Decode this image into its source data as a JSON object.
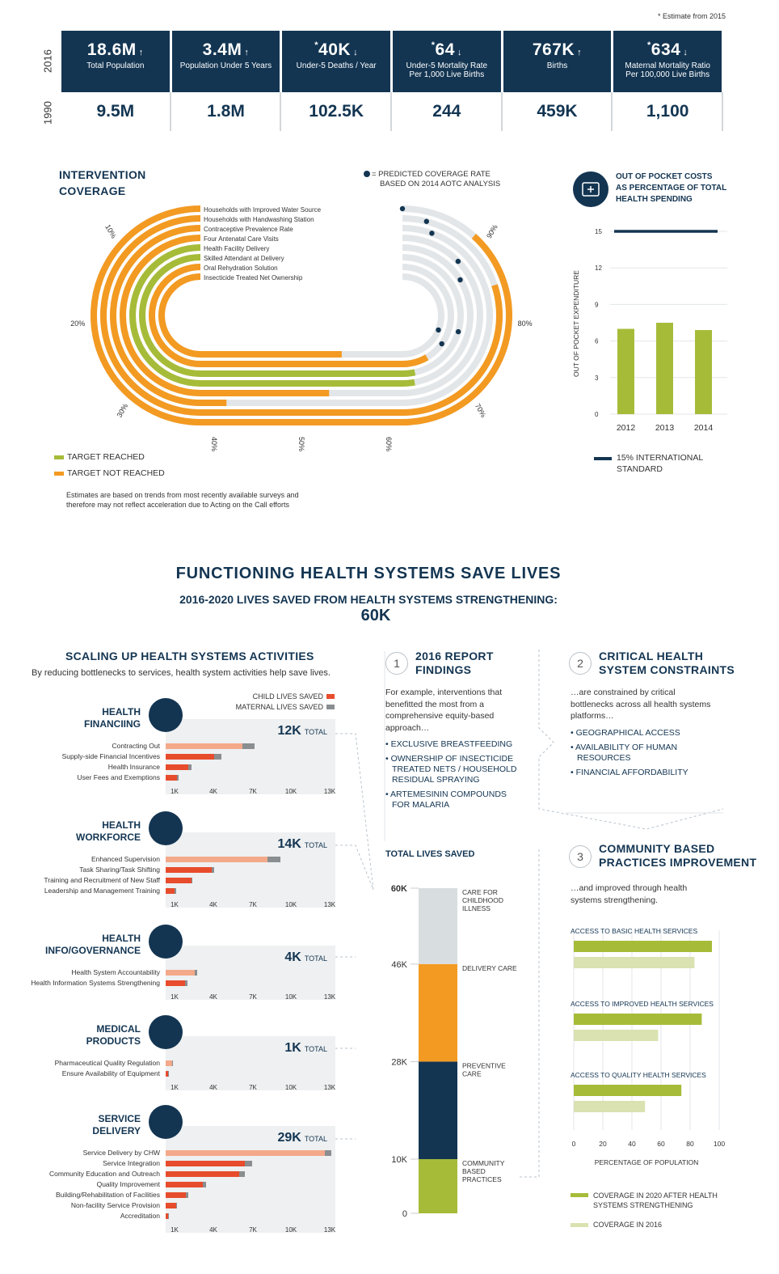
{
  "estimate_note": "* Estimate from 2015",
  "years": {
    "top": "2016",
    "bottom": "1990"
  },
  "stats": [
    {
      "val2016": "18.6M",
      "arrow": "↑",
      "est": "",
      "label1": "Total Population",
      "label2": "",
      "val1990": "9.5M"
    },
    {
      "val2016": "3.4M",
      "arrow": "↑",
      "est": "",
      "label1": "Population Under 5 Years",
      "label2": "",
      "val1990": "1.8M"
    },
    {
      "val2016": "40K",
      "arrow": "↓",
      "est": "*",
      "label1": "Under-5 Deaths / Year",
      "label2": "",
      "val1990": "102.5K"
    },
    {
      "val2016": "64",
      "arrow": "↓",
      "est": "*",
      "label1": "Under-5 Mortality Rate",
      "label2": "Per 1,000 Live Births",
      "val1990": "244"
    },
    {
      "val2016": "767K",
      "arrow": "↑",
      "est": "",
      "label1": "Births",
      "label2": "",
      "val1990": "459K"
    },
    {
      "val2016": "634",
      "arrow": "↓",
      "est": "*",
      "label1": "Maternal Mortality Ratio",
      "label2": "Per 100,000 Live Births",
      "val1990": "1,100"
    }
  ],
  "coverage": {
    "title1": "INTERVENTION",
    "title2": "COVERAGE",
    "predicted_note1": "= PREDICTED COVERAGE RATE",
    "predicted_note2": "BASED ON 2014 AOTC ANALYSIS",
    "legend_reached": "TARGET REACHED",
    "legend_not": "TARGET NOT REACHED",
    "footnote1": "Estimates are based on trends from most recently available surveys and",
    "footnote2": "therefore may not reflect acceleration due to Acting on the Call efforts",
    "ticks": [
      "10%",
      "20%",
      "30%",
      "40%",
      "50%",
      "60%",
      "70%",
      "80%",
      "90%"
    ]
  },
  "oop": {
    "title1": "OUT OF POCKET COSTS",
    "title2": "AS PERCENTAGE OF TOTAL",
    "title3": "HEALTH SPENDING",
    "legend1": "15% INTERNATIONAL",
    "legend2": "STANDARD"
  },
  "health_systems": {
    "title": "FUNCTIONING HEALTH SYSTEMS SAVE LIVES",
    "subtitle": "2016-2020 LIVES SAVED FROM HEALTH SYSTEMS STRENGTHENING:",
    "total": "60K"
  },
  "scaling": {
    "title": "SCALING UP HEALTH SYSTEMS ACTIVITIES",
    "subtitle": "By reducing bottlenecks to services, health system activities help save lives.",
    "legend_child": "CHILD LIVES SAVED",
    "legend_maternal": "MATERNAL LIVES SAVED",
    "total_word": "TOTAL",
    "axis": [
      "1K",
      "4K",
      "7K",
      "10K",
      "13K"
    ]
  },
  "findings": {
    "num": "1",
    "title1": "2016 REPORT",
    "title2": "FINDINGS",
    "intro": [
      "For example, interventions that",
      "benefitted the most from a",
      "comprehensive equity-based",
      "approach…"
    ],
    "bullets": [
      [
        "• EXCLUSIVE BREASTFEEDING"
      ],
      [
        "• OWNERSHIP OF INSECTICIDE",
        "TREATED NETS / HOUSEHOLD",
        "RESIDUAL SPRAYING"
      ],
      [
        "• ARTEMESININ COMPOUNDS",
        "FOR MALARIA"
      ]
    ]
  },
  "constraints": {
    "num": "2",
    "title1": "CRITICAL HEALTH",
    "title2": "SYSTEM CONSTRAINTS",
    "intro": [
      "…are constrained by critical",
      "bottlenecks across all health systems",
      "platforms…"
    ],
    "bullets": [
      [
        "• GEOGRAPHICAL ACCESS"
      ],
      [
        "• AVAILABILITY OF HUMAN",
        "RESOURCES"
      ],
      [
        "• FINANCIAL AFFORDABILITY"
      ]
    ]
  },
  "community": {
    "num": "3",
    "title1": "COMMUNITY BASED",
    "title2": "PRACTICES IMPROVEMENT",
    "intro": [
      "…and improved through health",
      "systems strengthening."
    ],
    "xlabel": "PERCENTAGE OF POPULATION",
    "legend_2020": [
      "COVERAGE IN 2020 AFTER HEALTH",
      "SYSTEMS STRENGTHENING"
    ],
    "legend_2016": "COVERAGE IN 2016"
  },
  "total_lives": {
    "title": "TOTAL LIVES SAVED"
  },
  "chart_data": [
    {
      "type": "bar",
      "id": "intervention-coverage",
      "title": "Intervention Coverage",
      "categories": [
        "Households with Improved Water Source",
        "Households with Handwashing Station",
        "Contraceptive Prevalence Rate",
        "Four Antenatal Care Visits",
        "Health Facility Delivery",
        "Skilled Attendant at Delivery",
        "Oral Rehydration Solution",
        "Insecticide Treated Net Ownership"
      ],
      "values": [
        91,
        85,
        40,
        54,
        68,
        70,
        75,
        59
      ],
      "predicted": [
        100,
        97,
        96,
        91,
        89,
        81,
        79,
        83
      ],
      "status": [
        "not",
        "not",
        "not",
        "not",
        "reached",
        "reached",
        "not",
        "not"
      ],
      "unit": "%"
    },
    {
      "type": "bar",
      "id": "oop",
      "title": "Out of Pocket Costs as Percentage of Total Health Spending",
      "categories": [
        "2012",
        "2013",
        "2014"
      ],
      "values": [
        7.0,
        7.5,
        6.9
      ],
      "reference": 15,
      "ylabel": "OUT OF POCKET EXPENDITURE",
      "yticks": [
        0,
        3,
        6,
        9,
        12,
        15
      ],
      "ylim": [
        0,
        15
      ]
    },
    {
      "type": "bar",
      "id": "scaling",
      "title": "Scaling Up Health Systems Activities",
      "xlim": [
        0,
        13
      ],
      "groups": [
        {
          "name1": "HEALTH",
          "name2": "FINANCIING",
          "total": "12K",
          "items": [
            {
              "label": "Contracting Out",
              "child": 6.0,
              "maternal": 1.0
            },
            {
              "label": "Supply-side Financial Incentives",
              "child": 3.8,
              "maternal": 0.6
            },
            {
              "label": "Health Insurance",
              "child": 1.8,
              "maternal": 0.2
            },
            {
              "label": "User Fees and Exemptions",
              "child": 0.9,
              "maternal": 0.1
            }
          ]
        },
        {
          "name1": "HEALTH",
          "name2": "WORKFORCE",
          "total": "14K",
          "items": [
            {
              "label": "Enhanced Supervision",
              "child": 8.0,
              "maternal": 1.0
            },
            {
              "label": "Task Sharing/Task Shifting",
              "child": 3.6,
              "maternal": 0.2
            },
            {
              "label": "Training and Recruitment of New Staff",
              "child": 2.0,
              "maternal": 0.1
            },
            {
              "label": "Leadership and Management Training",
              "child": 0.7,
              "maternal": 0.1
            }
          ]
        },
        {
          "name1": "HEALTH",
          "name2": "INFO/GOVERNANCE",
          "total": "4K",
          "items": [
            {
              "label": "Health System Accountability",
              "child": 2.3,
              "maternal": 0.2
            },
            {
              "label": "Health Information Systems Strengthening",
              "child": 1.5,
              "maternal": 0.2
            }
          ]
        },
        {
          "name1": "MEDICAL",
          "name2": "PRODUCTS",
          "total": "1K",
          "items": [
            {
              "label": "Pharmaceutical Quality Regulation",
              "child": 0.5,
              "maternal": 0.05
            },
            {
              "label": "Ensure Availability of Equipment",
              "child": 0.2,
              "maternal": 0.05
            }
          ]
        },
        {
          "name1": "SERVICE",
          "name2": "DELIVERY",
          "total": "29K",
          "items": [
            {
              "label": "Service Delivery by CHW",
              "child": 12.5,
              "maternal": 0.5
            },
            {
              "label": "Service Integration",
              "child": 6.2,
              "maternal": 0.6
            },
            {
              "label": "Community Education and Outreach",
              "child": 5.8,
              "maternal": 0.4
            },
            {
              "label": "Quality Improvement",
              "child": 2.9,
              "maternal": 0.3
            },
            {
              "label": "Building/Rehabilitation of Facilities",
              "child": 1.6,
              "maternal": 0.2
            },
            {
              "label": "Non-facility Service Provision",
              "child": 0.8,
              "maternal": 0.1
            },
            {
              "label": "Accreditation",
              "child": 0.2,
              "maternal": 0.05
            }
          ]
        }
      ]
    },
    {
      "type": "bar",
      "id": "total-lives",
      "title": "Total Lives Saved",
      "stacked": true,
      "segments": [
        {
          "label": "COMMUNITY BASED PRACTICES",
          "from": 0,
          "to": 10,
          "color": "#a6bc39"
        },
        {
          "label": "PREVENTIVE CARE",
          "from": 10,
          "to": 28,
          "color": "#133552"
        },
        {
          "label": "DELIVERY CARE",
          "from": 28,
          "to": 46,
          "color": "#f39a22"
        },
        {
          "label": "CARE FOR CHILDHOOD ILLNESS",
          "from": 46,
          "to": 60,
          "color": "#d8dde0"
        }
      ],
      "yticks": [
        "0",
        "10K",
        "28K",
        "46K",
        "60K"
      ],
      "ylim": [
        0,
        60
      ]
    },
    {
      "type": "bar",
      "id": "community-coverage",
      "title": "Community Based Practices Improvement",
      "categories": [
        "ACCESS TO BASIC HEALTH SERVICES",
        "ACCESS TO IMPROVED HEALTH SERVICES",
        "ACCESS TO QUALITY HEALTH SERVICES"
      ],
      "series": [
        {
          "name": "COVERAGE IN 2020 AFTER HEALTH SYSTEMS STRENGTHENING",
          "values": [
            95,
            88,
            74
          ]
        },
        {
          "name": "COVERAGE IN 2016",
          "values": [
            83,
            58,
            49
          ]
        }
      ],
      "xticks": [
        "0",
        "20",
        "40",
        "60",
        "80",
        "100"
      ],
      "xlabel": "PERCENTAGE OF POPULATION",
      "xlim": [
        0,
        100
      ]
    }
  ]
}
